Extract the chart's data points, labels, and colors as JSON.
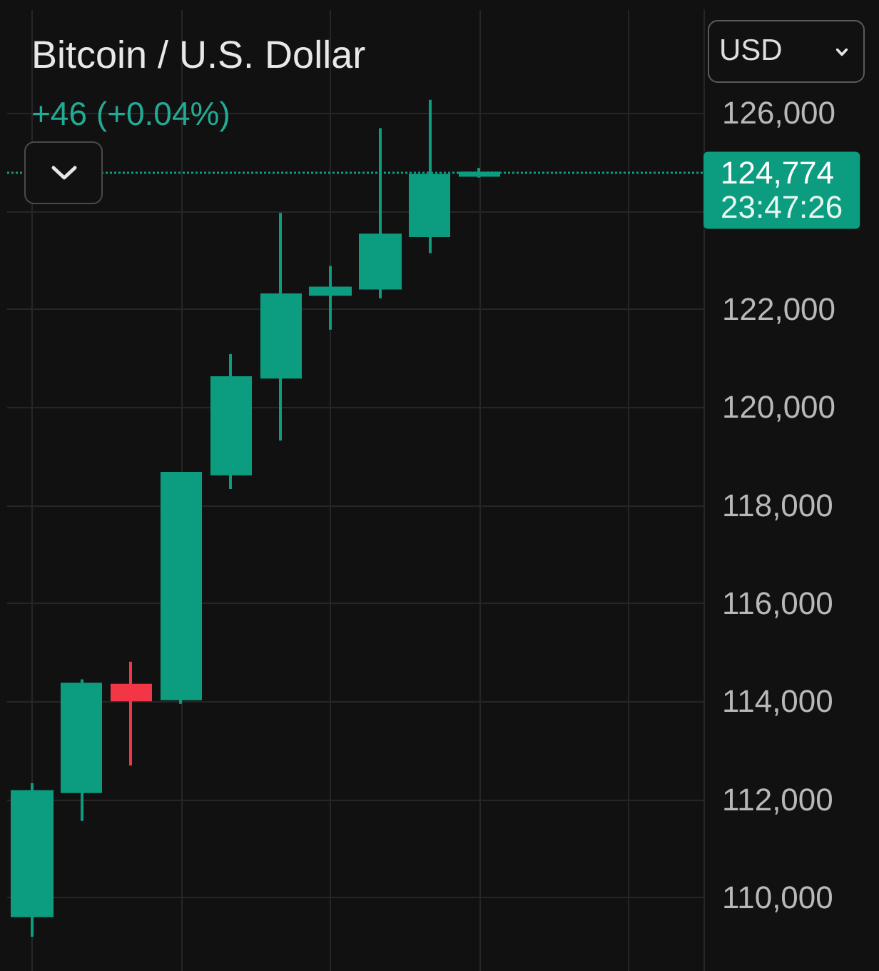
{
  "chart_data": {
    "type": "candlestick",
    "title": "Bitcoin / U.S. Dollar",
    "subtitle": "+46 (+0.04%)",
    "ylabel": "USD",
    "categories": [
      null,
      null,
      null,
      null,
      null,
      null,
      null,
      null,
      null,
      null,
      null,
      null,
      null,
      null
    ],
    "ohlc": [
      [
        109630,
        112330,
        109200,
        112160
      ],
      [
        112160,
        114450,
        111560,
        114350
      ],
      [
        114330,
        114810,
        112690,
        114030
      ],
      [
        114050,
        118680,
        113950,
        118650
      ],
      [
        118640,
        121080,
        118330,
        120600
      ],
      [
        120610,
        123960,
        119320,
        122290
      ],
      [
        122300,
        122880,
        121580,
        122430
      ],
      [
        122430,
        125690,
        122220,
        123510
      ],
      [
        123500,
        126270,
        123140,
        124728
      ],
      [
        124728,
        124880,
        124680,
        124774
      ],
      null,
      null,
      null,
      null
    ],
    "colors": [
      "#0c9d80",
      "#0c9d80",
      "#f23645",
      "#0c9d80",
      "#0c9d80",
      "#0c9d80",
      "#0c9d80",
      "#0c9d80",
      "#0c9d80",
      "#0c9d80",
      null,
      null,
      null,
      null
    ],
    "ylim": [
      108500,
      128100
    ],
    "yticks": [
      {
        "value": 110000,
        "label": "110,000"
      },
      {
        "value": 112000,
        "label": "112,000"
      },
      {
        "value": 114000,
        "label": "114,000"
      },
      {
        "value": 116000,
        "label": "116,000"
      },
      {
        "value": 118000,
        "label": "118,000"
      },
      {
        "value": 120000,
        "label": "120,000"
      },
      {
        "value": 122000,
        "label": "122,000"
      },
      {
        "value": 124000,
        "label": null
      },
      {
        "value": 126000,
        "label": "126,000"
      }
    ],
    "tick_labels": "y",
    "grid": true,
    "ref_lines": [
      {
        "axis": "y",
        "value": 124774,
        "label": "124,774",
        "color": "#0c9d80",
        "line_style": "dotted"
      }
    ],
    "annotations": [
      "23:47:26"
    ]
  }
}
